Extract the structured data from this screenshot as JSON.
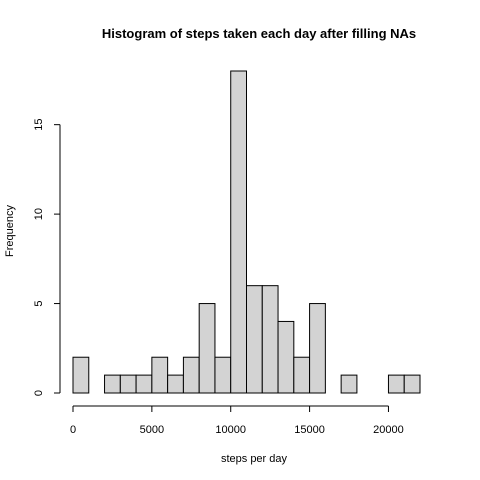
{
  "chart_data": {
    "type": "bar",
    "title": "Histogram of steps taken each day after filling NAs",
    "xlabel": "steps per day",
    "ylabel": "Frequency",
    "bin_edges": [
      0,
      1000,
      2000,
      3000,
      4000,
      5000,
      6000,
      7000,
      8000,
      9000,
      10000,
      11000,
      12000,
      13000,
      14000,
      15000,
      16000,
      17000,
      18000,
      19000,
      20000,
      21000,
      22000
    ],
    "values": [
      2,
      0,
      1,
      1,
      1,
      2,
      1,
      2,
      5,
      2,
      18,
      6,
      6,
      4,
      2,
      5,
      0,
      1,
      0,
      0,
      1,
      1
    ],
    "xlim": [
      0,
      22000
    ],
    "ylim": [
      0,
      18
    ],
    "x_ticks": [
      0,
      5000,
      10000,
      15000,
      20000
    ],
    "x_tick_labels": [
      "0",
      "5000",
      "10000",
      "15000",
      "20000"
    ],
    "y_ticks": [
      0,
      5,
      10,
      15
    ],
    "y_tick_labels": [
      "0",
      "5",
      "10",
      "15"
    ],
    "grid": false,
    "colors": {
      "bar_fill": "#d3d3d3",
      "bar_stroke": "#000000"
    }
  }
}
